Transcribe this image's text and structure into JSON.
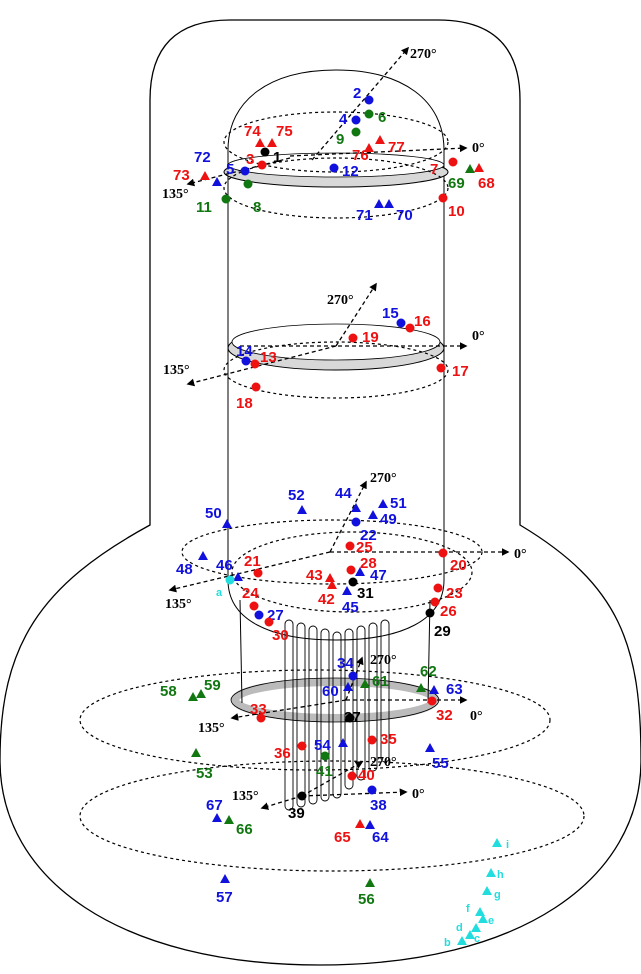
{
  "colors": {
    "red": "#ee1111",
    "blue": "#1111dd",
    "green": "#117711",
    "black": "#000000",
    "cyan": "#22dddd"
  },
  "angle_labels": [
    {
      "id": "top-270",
      "text": "270°"
    },
    {
      "id": "top-0",
      "text": "0°"
    },
    {
      "id": "top-135",
      "text": "135°"
    },
    {
      "id": "mid-270",
      "text": "270°"
    },
    {
      "id": "mid-0",
      "text": "0°"
    },
    {
      "id": "mid-135",
      "text": "135°"
    },
    {
      "id": "low-270",
      "text": "270°"
    },
    {
      "id": "low-0",
      "text": "0°"
    },
    {
      "id": "low-135",
      "text": "135°"
    },
    {
      "id": "ring-270",
      "text": "270°"
    },
    {
      "id": "ring-0",
      "text": "0°"
    },
    {
      "id": "ring-135",
      "text": "135°"
    },
    {
      "id": "base-270",
      "text": "270°"
    },
    {
      "id": "base-0",
      "text": "0°"
    },
    {
      "id": "base-135",
      "text": "135°"
    }
  ],
  "points": [
    {
      "label": "1",
      "color": "black",
      "shape": "circle"
    },
    {
      "label": "2",
      "color": "blue",
      "shape": "circle"
    },
    {
      "label": "3",
      "color": "red",
      "shape": "circle"
    },
    {
      "label": "4",
      "color": "blue",
      "shape": "circle"
    },
    {
      "label": "5",
      "color": "blue",
      "shape": "circle"
    },
    {
      "label": "6",
      "color": "green",
      "shape": "circle"
    },
    {
      "label": "7",
      "color": "red",
      "shape": "circle"
    },
    {
      "label": "8",
      "color": "green",
      "shape": "circle"
    },
    {
      "label": "9",
      "color": "green",
      "shape": "circle"
    },
    {
      "label": "10",
      "color": "red",
      "shape": "circle"
    },
    {
      "label": "11",
      "color": "green",
      "shape": "circle"
    },
    {
      "label": "12",
      "color": "blue",
      "shape": "circle"
    },
    {
      "label": "13",
      "color": "red",
      "shape": "circle"
    },
    {
      "label": "14",
      "color": "blue",
      "shape": "circle"
    },
    {
      "label": "15",
      "color": "blue",
      "shape": "circle"
    },
    {
      "label": "16",
      "color": "red",
      "shape": "circle"
    },
    {
      "label": "17",
      "color": "red",
      "shape": "circle"
    },
    {
      "label": "18",
      "color": "red",
      "shape": "circle"
    },
    {
      "label": "19",
      "color": "red",
      "shape": "circle"
    },
    {
      "label": "20",
      "color": "red",
      "shape": "circle"
    },
    {
      "label": "21",
      "color": "red",
      "shape": "circle"
    },
    {
      "label": "22",
      "color": "blue",
      "shape": "circle"
    },
    {
      "label": "23",
      "color": "red",
      "shape": "circle"
    },
    {
      "label": "24",
      "color": "red",
      "shape": "circle"
    },
    {
      "label": "25",
      "color": "red",
      "shape": "circle"
    },
    {
      "label": "26",
      "color": "red",
      "shape": "circle"
    },
    {
      "label": "27",
      "color": "blue",
      "shape": "circle"
    },
    {
      "label": "28",
      "color": "red",
      "shape": "circle"
    },
    {
      "label": "29",
      "color": "black",
      "shape": "circle"
    },
    {
      "label": "30",
      "color": "red",
      "shape": "circle"
    },
    {
      "label": "31",
      "color": "black",
      "shape": "circle"
    },
    {
      "label": "32",
      "color": "red",
      "shape": "circle"
    },
    {
      "label": "33",
      "color": "red",
      "shape": "circle"
    },
    {
      "label": "34",
      "color": "blue",
      "shape": "circle"
    },
    {
      "label": "35",
      "color": "red",
      "shape": "circle"
    },
    {
      "label": "36",
      "color": "red",
      "shape": "circle"
    },
    {
      "label": "37",
      "color": "black",
      "shape": "circle"
    },
    {
      "label": "38",
      "color": "blue",
      "shape": "circle"
    },
    {
      "label": "39",
      "color": "black",
      "shape": "circle"
    },
    {
      "label": "40",
      "color": "red",
      "shape": "circle"
    },
    {
      "label": "41",
      "color": "green",
      "shape": "circle"
    },
    {
      "label": "42",
      "color": "red",
      "shape": "triangle"
    },
    {
      "label": "43",
      "color": "red",
      "shape": "triangle"
    },
    {
      "label": "44",
      "color": "blue",
      "shape": "triangle"
    },
    {
      "label": "45",
      "color": "blue",
      "shape": "triangle"
    },
    {
      "label": "46",
      "color": "blue",
      "shape": "triangle"
    },
    {
      "label": "47",
      "color": "blue",
      "shape": "triangle"
    },
    {
      "label": "48",
      "color": "blue",
      "shape": "triangle"
    },
    {
      "label": "49",
      "color": "blue",
      "shape": "triangle"
    },
    {
      "label": "50",
      "color": "blue",
      "shape": "triangle"
    },
    {
      "label": "51",
      "color": "blue",
      "shape": "triangle"
    },
    {
      "label": "52",
      "color": "blue",
      "shape": "triangle"
    },
    {
      "label": "53",
      "color": "green",
      "shape": "triangle"
    },
    {
      "label": "54",
      "color": "blue",
      "shape": "triangle"
    },
    {
      "label": "55",
      "color": "blue",
      "shape": "triangle"
    },
    {
      "label": "56",
      "color": "green",
      "shape": "triangle"
    },
    {
      "label": "57",
      "color": "blue",
      "shape": "triangle"
    },
    {
      "label": "58",
      "color": "green",
      "shape": "triangle"
    },
    {
      "label": "59",
      "color": "green",
      "shape": "triangle"
    },
    {
      "label": "60",
      "color": "blue",
      "shape": "triangle"
    },
    {
      "label": "61",
      "color": "green",
      "shape": "triangle"
    },
    {
      "label": "62",
      "color": "green",
      "shape": "triangle"
    },
    {
      "label": "63",
      "color": "blue",
      "shape": "triangle"
    },
    {
      "label": "64",
      "color": "blue",
      "shape": "triangle"
    },
    {
      "label": "65",
      "color": "red",
      "shape": "triangle"
    },
    {
      "label": "66",
      "color": "green",
      "shape": "triangle"
    },
    {
      "label": "67",
      "color": "blue",
      "shape": "triangle"
    },
    {
      "label": "68",
      "color": "red",
      "shape": "triangle"
    },
    {
      "label": "69",
      "color": "green",
      "shape": "triangle"
    },
    {
      "label": "70",
      "color": "blue",
      "shape": "triangle"
    },
    {
      "label": "71",
      "color": "blue",
      "shape": "triangle"
    },
    {
      "label": "72",
      "color": "blue",
      "shape": "triangle"
    },
    {
      "label": "73",
      "color": "red",
      "shape": "triangle"
    },
    {
      "label": "74",
      "color": "red",
      "shape": "triangle"
    },
    {
      "label": "75",
      "color": "red",
      "shape": "triangle"
    },
    {
      "label": "76",
      "color": "red",
      "shape": "triangle"
    },
    {
      "label": "77",
      "color": "red",
      "shape": "triangle"
    },
    {
      "label": "a",
      "color": "cyan",
      "shape": "circle"
    },
    {
      "label": "b",
      "color": "cyan",
      "shape": "triangle"
    },
    {
      "label": "c",
      "color": "cyan",
      "shape": "triangle"
    },
    {
      "label": "d",
      "color": "cyan",
      "shape": "triangle"
    },
    {
      "label": "e",
      "color": "cyan",
      "shape": "triangle"
    },
    {
      "label": "f",
      "color": "cyan",
      "shape": "triangle"
    },
    {
      "label": "g",
      "color": "cyan",
      "shape": "triangle"
    },
    {
      "label": "h",
      "color": "cyan",
      "shape": "triangle"
    },
    {
      "label": "i",
      "color": "cyan",
      "shape": "triangle"
    }
  ]
}
